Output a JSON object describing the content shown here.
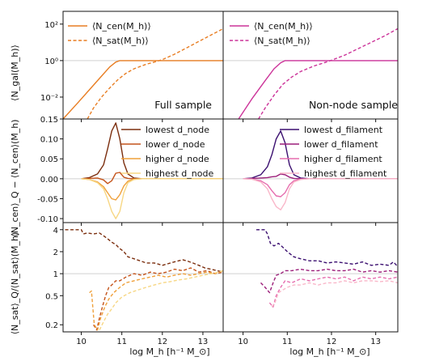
{
  "colors": {
    "orange_full": "#E87D22",
    "magenta_nonnode": "#CC3399",
    "lowest_node": "#7B2E0E",
    "lower_node": "#C4531A",
    "higher_node": "#EFA03A",
    "highest_node": "#F7D784",
    "lowest_filament": "#3B0F70",
    "lower_filament": "#9C1F7A",
    "higher_filament": "#E66DAE",
    "highest_filament": "#F9B7C9",
    "reference_line": "#d0d0d0"
  },
  "labels": {
    "xlabel": "log M_h [h⁻¹ M_⊙]",
    "ylabel_top": "⟨N_gal(M_h)⟩",
    "ylabel_mid": "⟨N_cen⟩_Q − ⟨N_cen⟩(M_h)",
    "ylabel_bot": "⟨N_sat⟩_Q/⟨N_sat⟩(M_h)",
    "note_left": "Full sample",
    "note_right": "Non-node sample"
  },
  "legends": {
    "top_left": [
      "⟨N_cen(M_h)⟩",
      "⟨N_sat(M_h)⟩"
    ],
    "top_right": [
      "⟨N_cen(M_h)⟩",
      "⟨N_sat(M_h)⟩"
    ],
    "mid_left": [
      "lowest d_node",
      "lower d_node",
      "higher d_node",
      "highest d_node"
    ],
    "mid_right": [
      "lowest d_filament",
      "lower d_filament",
      "higher d_filament",
      "highest d_filament"
    ]
  },
  "chart_data": [
    {
      "type": "line",
      "panel": "top-left",
      "xlim": [
        9.55,
        13.5
      ],
      "ylim_log10": [
        -3.2,
        2.7
      ],
      "yscale": "log",
      "xticks": [
        10,
        11,
        12,
        13
      ],
      "yticks": [
        "10⁻²",
        "10⁰",
        "10²"
      ],
      "series": [
        {
          "name": "⟨N_cen(M_h)⟩",
          "style": "solid",
          "color": "#E87D22",
          "x": [
            9.55,
            9.9,
            10.2,
            10.5,
            10.7,
            10.85,
            10.95,
            11.1,
            11.5,
            12.0,
            13.5
          ],
          "log10y": [
            -3.2,
            -2.35,
            -1.6,
            -0.85,
            -0.35,
            -0.08,
            0.0,
            0.0,
            0.0,
            0.0,
            0.0
          ]
        },
        {
          "name": "⟨N_sat(M_h)⟩",
          "style": "dashed",
          "color": "#E87D22",
          "x": [
            10.15,
            10.3,
            10.5,
            10.7,
            10.9,
            11.1,
            11.3,
            11.6,
            11.8,
            12.0,
            12.3,
            12.6,
            12.9,
            13.2,
            13.5
          ],
          "log10y": [
            -3.2,
            -2.6,
            -2.0,
            -1.5,
            -1.05,
            -0.7,
            -0.45,
            -0.2,
            -0.08,
            0.05,
            0.35,
            0.7,
            1.05,
            1.4,
            1.75
          ]
        }
      ]
    },
    {
      "type": "line",
      "panel": "top-right",
      "xlim": [
        9.55,
        13.5
      ],
      "ylim_log10": [
        -3.2,
        2.7
      ],
      "yscale": "log",
      "xticks": [
        10,
        11,
        12,
        13
      ],
      "series": [
        {
          "name": "⟨N_cen(M_h)⟩",
          "style": "solid",
          "color": "#CC3399",
          "x": [
            9.9,
            10.2,
            10.5,
            10.7,
            10.85,
            10.95,
            11.1,
            11.5,
            12.0,
            13.5
          ],
          "log10y": [
            -3.2,
            -2.1,
            -1.1,
            -0.45,
            -0.12,
            0.0,
            0.0,
            0.0,
            0.0,
            0.0
          ]
        },
        {
          "name": "⟨N_sat(M_h)⟩",
          "style": "dashed",
          "color": "#CC3399",
          "x": [
            10.35,
            10.5,
            10.7,
            10.9,
            11.1,
            11.3,
            11.6,
            11.8,
            12.0,
            12.3,
            12.6,
            12.9,
            13.2,
            13.5
          ],
          "log10y": [
            -3.2,
            -2.6,
            -1.9,
            -1.3,
            -0.9,
            -0.6,
            -0.3,
            -0.15,
            0.02,
            0.3,
            0.65,
            1.0,
            1.35,
            1.75
          ]
        }
      ]
    },
    {
      "type": "line",
      "panel": "mid-left",
      "xlim": [
        9.55,
        13.5
      ],
      "ylim": [
        -0.11,
        0.15
      ],
      "xticks": [
        10,
        11,
        12,
        13
      ],
      "yticks": [
        -0.1,
        -0.05,
        0.0,
        0.05,
        0.1,
        0.15
      ],
      "x": [
        10.0,
        10.2,
        10.4,
        10.55,
        10.65,
        10.75,
        10.85,
        10.95,
        11.05,
        11.15,
        11.3,
        11.5,
        13.5
      ],
      "series": [
        {
          "name": "lowest d_node",
          "color": "#7B2E0E",
          "y": [
            0,
            0.003,
            0.012,
            0.035,
            0.075,
            0.12,
            0.14,
            0.1,
            0.04,
            0.012,
            0.002,
            0,
            0
          ]
        },
        {
          "name": "lower d_node",
          "color": "#C4531A",
          "y": [
            0,
            0.001,
            0.002,
            -0.003,
            -0.012,
            -0.005,
            0.014,
            0.016,
            0.004,
            0.001,
            0,
            0,
            0
          ]
        },
        {
          "name": "higher d_node",
          "color": "#EFA03A",
          "y": [
            0,
            -0.002,
            -0.008,
            -0.02,
            -0.035,
            -0.05,
            -0.053,
            -0.04,
            -0.018,
            -0.006,
            -0.001,
            0,
            0
          ]
        },
        {
          "name": "highest d_node",
          "color": "#F7D784",
          "y": [
            0,
            -0.002,
            -0.01,
            -0.025,
            -0.05,
            -0.082,
            -0.1,
            -0.082,
            -0.035,
            -0.01,
            -0.002,
            0,
            0
          ]
        }
      ]
    },
    {
      "type": "line",
      "panel": "mid-right",
      "xlim": [
        9.55,
        13.5
      ],
      "ylim": [
        -0.11,
        0.15
      ],
      "xticks": [
        10,
        11,
        12,
        13
      ],
      "x": [
        10.0,
        10.2,
        10.4,
        10.55,
        10.65,
        10.75,
        10.85,
        10.95,
        11.05,
        11.15,
        11.3,
        11.5,
        13.5
      ],
      "series": [
        {
          "name": "lowest d_filament",
          "color": "#3B0F70",
          "y": [
            0,
            0.002,
            0.01,
            0.03,
            0.06,
            0.1,
            0.12,
            0.09,
            0.035,
            0.01,
            0.002,
            0,
            0
          ]
        },
        {
          "name": "lower d_filament",
          "color": "#9C1F7A",
          "y": [
            0,
            0.001,
            0.002,
            0.003,
            0.005,
            0.006,
            0.012,
            0.01,
            0.004,
            0.001,
            0,
            0,
            0
          ]
        },
        {
          "name": "higher d_filament",
          "color": "#E66DAE",
          "y": [
            0,
            -0.001,
            -0.005,
            -0.015,
            -0.03,
            -0.043,
            -0.045,
            -0.035,
            -0.015,
            -0.005,
            -0.001,
            0,
            0
          ]
        },
        {
          "name": "highest d_filament",
          "color": "#F9B7C9",
          "y": [
            0,
            -0.001,
            -0.008,
            -0.025,
            -0.05,
            -0.07,
            -0.078,
            -0.06,
            -0.025,
            -0.008,
            -0.002,
            0,
            0
          ]
        }
      ]
    },
    {
      "type": "line",
      "panel": "bottom-left",
      "xlim": [
        9.55,
        13.5
      ],
      "yscale": "log",
      "ylim": [
        0.16,
        5.0
      ],
      "xticks": [
        10,
        11,
        12,
        13
      ],
      "yticks": [
        0.2,
        0.5,
        1,
        2,
        4
      ],
      "series": [
        {
          "name": "lowest d_node",
          "style": "dashed",
          "color": "#7B2E0E",
          "x": [
            9.6,
            9.75,
            9.9,
            10.0,
            10.05,
            10.15,
            10.3,
            10.45,
            10.55,
            10.65,
            10.75,
            10.85,
            10.95,
            11.05,
            11.15,
            11.3,
            11.45,
            11.6,
            11.8,
            12.0,
            12.2,
            12.4,
            12.5,
            12.6,
            12.75,
            12.9,
            13.05,
            13.2,
            13.35,
            13.5
          ],
          "y": [
            4.0,
            4.0,
            4.0,
            4.0,
            3.5,
            3.6,
            3.5,
            3.6,
            3.3,
            3.0,
            2.7,
            2.5,
            2.2,
            2.0,
            1.7,
            1.6,
            1.5,
            1.4,
            1.4,
            1.3,
            1.4,
            1.5,
            1.55,
            1.5,
            1.4,
            1.3,
            1.2,
            1.15,
            1.1,
            1.05
          ]
        },
        {
          "name": "lower d_node",
          "style": "dashed",
          "color": "#C4531A",
          "x": [
            10.3,
            10.38,
            10.45,
            10.52,
            10.6,
            10.68,
            10.75,
            10.85,
            10.95,
            11.1,
            11.3,
            11.5,
            11.7,
            11.9,
            12.1,
            12.3,
            12.5,
            12.7,
            12.9,
            13.1,
            13.3,
            13.5
          ],
          "y": [
            0.2,
            0.17,
            0.25,
            0.35,
            0.5,
            0.65,
            0.7,
            0.8,
            0.8,
            0.9,
            1.0,
            0.95,
            1.05,
            1.0,
            1.05,
            1.15,
            1.1,
            1.2,
            1.05,
            1.1,
            1.0,
            1.05
          ]
        },
        {
          "name": "higher d_node",
          "style": "dashed",
          "color": "#EFA03A",
          "x": [
            10.2,
            10.25,
            10.32,
            10.4,
            10.48,
            10.58,
            10.68,
            10.8,
            10.95,
            11.1,
            11.3,
            11.5,
            11.7,
            11.9,
            12.1,
            12.3,
            12.5,
            12.7,
            12.9,
            13.1,
            13.3,
            13.5
          ],
          "y": [
            0.55,
            0.58,
            0.2,
            0.17,
            0.25,
            0.35,
            0.45,
            0.55,
            0.65,
            0.75,
            0.8,
            0.85,
            0.9,
            0.95,
            0.9,
            0.95,
            1.0,
            0.95,
            1.0,
            1.05,
            1.0,
            1.1
          ]
        },
        {
          "name": "highest d_node",
          "style": "dashed",
          "color": "#F7D784",
          "x": [
            10.45,
            10.55,
            10.65,
            10.75,
            10.85,
            11.0,
            11.2,
            11.4,
            11.6,
            11.8,
            12.0,
            12.2,
            12.4,
            12.6,
            12.8,
            13.0,
            13.2,
            13.4,
            13.5
          ],
          "y": [
            0.17,
            0.22,
            0.28,
            0.33,
            0.4,
            0.48,
            0.55,
            0.6,
            0.65,
            0.7,
            0.75,
            0.78,
            0.82,
            0.85,
            0.9,
            0.95,
            1.0,
            1.05,
            1.1
          ]
        }
      ]
    },
    {
      "type": "line",
      "panel": "bottom-right",
      "xlim": [
        9.55,
        13.5
      ],
      "yscale": "log",
      "ylim": [
        0.16,
        5.0
      ],
      "xticks": [
        10,
        11,
        12,
        13
      ],
      "series": [
        {
          "name": "lowest d_filament",
          "style": "dashed",
          "color": "#3B0F70",
          "x": [
            10.3,
            10.4,
            10.5,
            10.55,
            10.62,
            10.7,
            10.8,
            10.9,
            11.0,
            11.15,
            11.3,
            11.5,
            11.7,
            11.9,
            12.1,
            12.3,
            12.5,
            12.7,
            12.9,
            13.1,
            13.3,
            13.4,
            13.5
          ],
          "y": [
            4.0,
            4.0,
            4.0,
            3.5,
            2.6,
            2.4,
            2.6,
            2.3,
            2.0,
            1.7,
            1.6,
            1.5,
            1.5,
            1.4,
            1.45,
            1.4,
            1.35,
            1.45,
            1.3,
            1.35,
            1.3,
            1.45,
            1.25
          ]
        },
        {
          "name": "lower d_filament",
          "style": "dashed",
          "color": "#9C1F7A",
          "x": [
            10.4,
            10.5,
            10.6,
            10.68,
            10.75,
            10.85,
            10.95,
            11.1,
            11.3,
            11.5,
            11.7,
            11.9,
            12.1,
            12.3,
            12.5,
            12.7,
            12.9,
            13.1,
            13.3,
            13.5
          ],
          "y": [
            0.75,
            0.65,
            0.55,
            0.75,
            0.95,
            1.0,
            1.1,
            1.1,
            1.15,
            1.1,
            1.1,
            1.15,
            1.1,
            1.1,
            1.15,
            1.05,
            1.1,
            1.05,
            1.1,
            1.05
          ]
        },
        {
          "name": "higher d_filament",
          "style": "dashed",
          "color": "#E66DAE",
          "x": [
            10.6,
            10.68,
            10.75,
            10.85,
            10.95,
            11.1,
            11.3,
            11.5,
            11.7,
            11.9,
            12.1,
            12.3,
            12.5,
            12.7,
            12.9,
            13.1,
            13.3,
            13.5
          ],
          "y": [
            0.4,
            0.35,
            0.5,
            0.65,
            0.8,
            0.75,
            0.85,
            0.8,
            0.85,
            0.9,
            0.85,
            0.9,
            0.8,
            0.9,
            0.85,
            0.9,
            0.85,
            0.9
          ]
        },
        {
          "name": "highest d_filament",
          "style": "dashed",
          "color": "#F9B7C9",
          "x": [
            10.65,
            10.72,
            10.8,
            10.9,
            11.0,
            11.15,
            11.3,
            11.5,
            11.7,
            11.9,
            12.1,
            12.3,
            12.5,
            12.7,
            12.9,
            13.1,
            13.3,
            13.5
          ],
          "y": [
            0.35,
            0.4,
            0.55,
            0.6,
            0.65,
            0.7,
            0.7,
            0.75,
            0.7,
            0.75,
            0.75,
            0.8,
            0.75,
            0.8,
            0.8,
            0.78,
            0.8,
            0.75
          ]
        }
      ]
    }
  ]
}
